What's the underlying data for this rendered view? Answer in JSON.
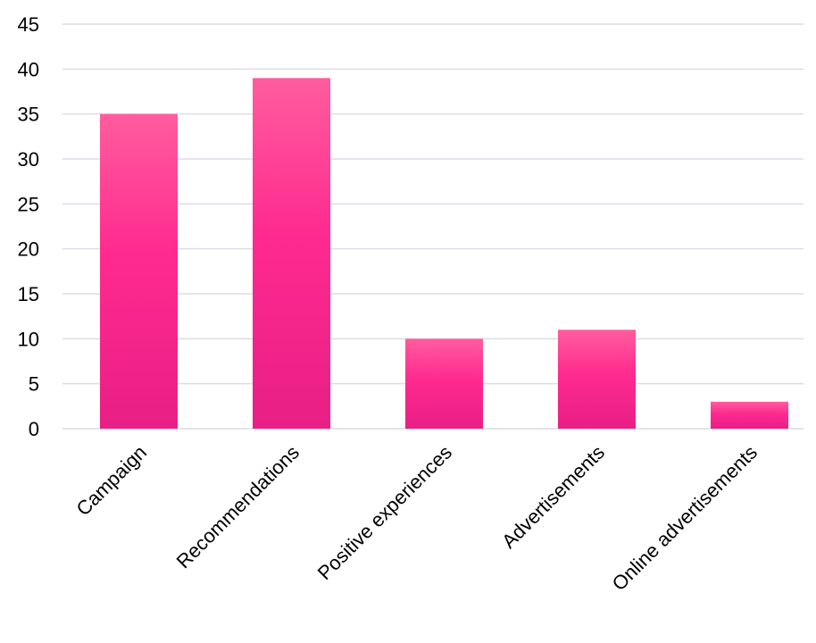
{
  "chart_data": {
    "type": "bar",
    "title": "",
    "xlabel": "",
    "ylabel": "",
    "categories": [
      "Campaign",
      "Recommendations",
      "Positive experiences",
      "Advertisements",
      "Online advertisements"
    ],
    "values": [
      35,
      39,
      10,
      11,
      3
    ],
    "ylim": [
      0,
      45
    ],
    "yticks": [
      0,
      5,
      10,
      15,
      20,
      25,
      30,
      35,
      40,
      45
    ],
    "grid": true,
    "legend": "none",
    "colors": {
      "bar_top": "#ff5c9e",
      "bar_mid": "#ff2a8f",
      "bar_bottom": "#e81f86",
      "grid": "#dcdce6"
    }
  }
}
